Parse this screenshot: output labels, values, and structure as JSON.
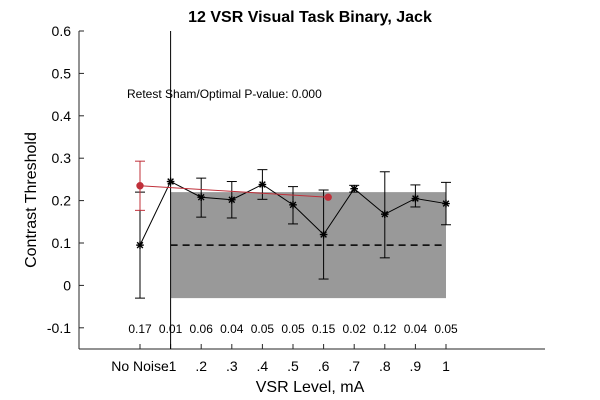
{
  "chart_data": {
    "type": "line",
    "title": "12 VSR Visual Task Binary, Jack",
    "xlabel": "VSR Level, mA",
    "ylabel": "Contrast Threshold",
    "ylim": [
      -0.15,
      0.6
    ],
    "yticks": [
      -0.1,
      0,
      0.1,
      0.2,
      0.3,
      0.4,
      0.5,
      0.6
    ],
    "ytick_labels": [
      "-0.1",
      "0",
      "0.1",
      "0.2",
      "0.3",
      "0.4",
      "0.5",
      "0.6"
    ],
    "x_categories": [
      "No Noise",
      ".1",
      ".2",
      ".3",
      ".4",
      ".5",
      ".6",
      ".7",
      ".8",
      ".9",
      "1"
    ],
    "annotation": "Retest Sham/Optimal P-value: 0.000",
    "p_values": [
      "0.17",
      "0.01",
      "0.06",
      "0.04",
      "0.05",
      "0.05",
      "0.15",
      "0.02",
      "0.12",
      "0.04",
      "0.05"
    ],
    "shaded_band": {
      "x_start": ".1",
      "x_end": "1",
      "y_min": -0.03,
      "y_max": 0.22,
      "color": "#999999"
    },
    "threshold_line": {
      "x_start": ".1",
      "x_end": "1",
      "y": 0.095,
      "style": "dashed"
    },
    "vertical_line_at": ".1",
    "series": [
      {
        "color": "#000000",
        "marker": "asterisk",
        "x": [
          "No Noise",
          ".1",
          ".2",
          ".3",
          ".4",
          ".5",
          ".6",
          ".7",
          ".8",
          ".9",
          "1"
        ],
        "values": [
          0.095,
          0.245,
          0.208,
          0.202,
          0.238,
          0.19,
          0.12,
          0.228,
          0.168,
          0.205,
          0.193
        ],
        "err_low": [
          0.125,
          0.0,
          0.047,
          0.043,
          0.035,
          0.045,
          0.105,
          0.008,
          0.103,
          0.02,
          0.05
        ],
        "err_high": [
          0.125,
          0.0,
          0.045,
          0.043,
          0.035,
          0.043,
          0.105,
          0.008,
          0.1,
          0.032,
          0.05
        ]
      },
      {
        "color": "#c0303a",
        "marker": "circle",
        "x": [
          0.0,
          6.15
        ],
        "values": [
          0.235,
          0.208
        ],
        "err_low": [
          0.058,
          0.0
        ],
        "err_high": [
          0.058,
          0.0
        ]
      }
    ]
  }
}
